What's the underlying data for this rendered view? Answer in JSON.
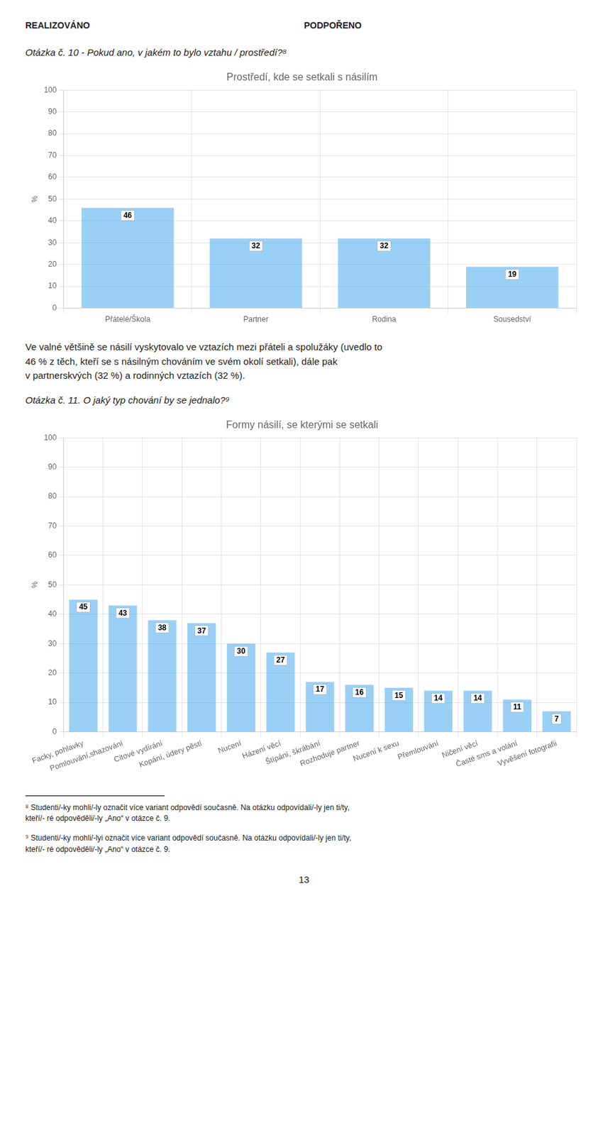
{
  "chart_data": [
    {
      "type": "bar",
      "title": "Prostředí, kde se setkali s násilím",
      "subtitle": "Otázka č. 10 - Pokud ano, v jakém to bylo vztahu / prostředí?⁸",
      "ylabel": "%",
      "categories": [
        "Přátelé/Škola",
        "Partner",
        "Rodina",
        "Sousedství"
      ],
      "values": [
        46,
        32,
        32,
        19
      ],
      "ylim": [
        0,
        100
      ],
      "yticks": [
        0,
        10,
        20,
        30,
        40,
        50,
        60,
        70,
        80,
        90,
        100
      ],
      "grid": true,
      "data_labels": true,
      "annotations": [
        "REALIZOVÁNO",
        "PODPOŘENO",
        "Ve valné většině se násilí vyskytovalo ve vztazích mezi přáteli a spolužáky (uvedlo to",
        "46 % z těch, kteří se s násilným chováním ve svém okolí setkali), dále pak",
        "v partnerskvých (32 %) a rodinných vztazích (32 %)."
      ]
    },
    {
      "type": "bar",
      "title": "Formy násilí, se kterými se setkali",
      "subtitle": "Otázka č. 11. O jaký typ chování by se jednalo?⁹",
      "ylabel": "%",
      "categories": [
        "Facky, pohlavky",
        "Pomlouvání,shazování",
        "Citové vydírání",
        "Kopání, údery pěstí",
        "Nucení",
        "Házení věcí",
        "Štípání, škrábání",
        "Rozhoduje partner",
        "Nucení k sexu",
        "Přemlouvání",
        "Ničení věcí",
        "Časté sms a volání",
        "Vyvěšení fotografii"
      ],
      "values": [
        45,
        43,
        38,
        37,
        30,
        27,
        17,
        16,
        15,
        14,
        14,
        11,
        7
      ],
      "ylim": [
        0,
        100
      ],
      "yticks": [
        0,
        10,
        20,
        30,
        40,
        50,
        60,
        70,
        80,
        90,
        100
      ],
      "grid": true,
      "data_labels": true,
      "annotations": [
        "⁸ Studenti/-ky mohli/-ly označit více variant odpovědí současně. Na otázku odpovídali/-ly jen ti/ty,",
        "kteří/- ré odpověděli/-ly „Ano“ v otázce č. 9.",
        "⁹ Studenti/-ky mohli/-lyi označit více variant odpovědí současně. Na otázku odpovídali/-ly jen ti/ty,",
        "kteří/- ré odpověděli/-ly „Ano“ v otázce č. 9.",
        "13"
      ]
    }
  ]
}
